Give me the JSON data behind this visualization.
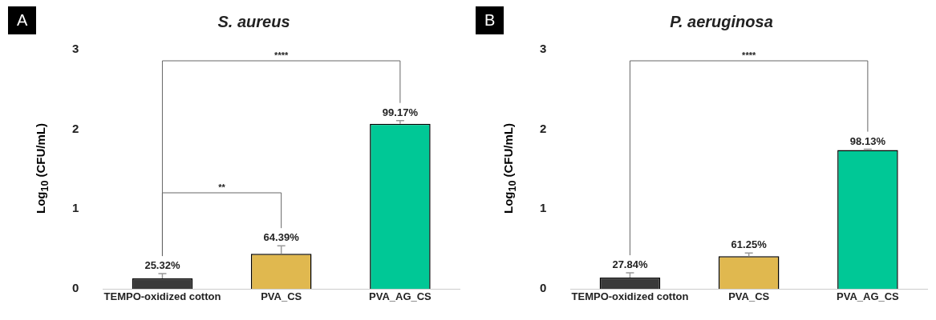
{
  "chart_data": [
    {
      "type": "bar",
      "title": "S. aureus",
      "ylabel": "Log$_{10}$ (CFU/mL)",
      "categories": [
        "TEMPO-oxidized cotton",
        "PVA_CS",
        "PVA_AG_CS"
      ],
      "values": [
        0.13,
        0.44,
        2.07
      ],
      "colors": [
        "#3a3a3a",
        "#e0b84f",
        "#00c896"
      ],
      "errors": [
        [
          0.13,
          0.19
        ],
        [
          0.44,
          0.54
        ],
        [
          2.07,
          2.11
        ]
      ],
      "ylim": [
        0,
        3
      ],
      "yticks": [
        0,
        1,
        2,
        3
      ],
      "grid": false,
      "legend": false,
      "annotations": [
        "A",
        "****",
        "**",
        {
          "text": "25.32%",
          "x": "TEMPO-oxidized cotton",
          "y": 0.13
        },
        {
          "text": "64.39%",
          "x": "PVA_CS",
          "y": 0.44
        },
        {
          "text": "99.17%",
          "x": "PVA_AG_CS",
          "y": 2.07
        }
      ]
    },
    {
      "type": "bar",
      "title": "P. aeruginosa",
      "ylabel": "Log$_{10}$ (CFU/mL)",
      "categories": [
        "TEMPO-oxidized cotton",
        "PVA_CS",
        "PVA_AG_CS"
      ],
      "values": [
        0.14,
        0.41,
        1.74
      ],
      "colors": [
        "#3a3a3a",
        "#e0b84f",
        "#00c896"
      ],
      "errors": [
        [
          0.14,
          0.2
        ],
        [
          0.41,
          0.45
        ],
        [
          1.74,
          1.75
        ]
      ],
      "ylim": [
        0,
        3
      ],
      "yticks": [
        0,
        1,
        2,
        3
      ],
      "grid": false,
      "legend": false,
      "annotations": [
        "B",
        "****",
        {
          "text": "27.84%",
          "x": "TEMPO-oxidized cotton",
          "y": 0.14
        },
        {
          "text": "61.25%",
          "x": "PVA_CS",
          "y": 0.41
        },
        {
          "text": "98.13%",
          "x": "PVA_AG_CS",
          "y": 1.74
        }
      ]
    }
  ]
}
